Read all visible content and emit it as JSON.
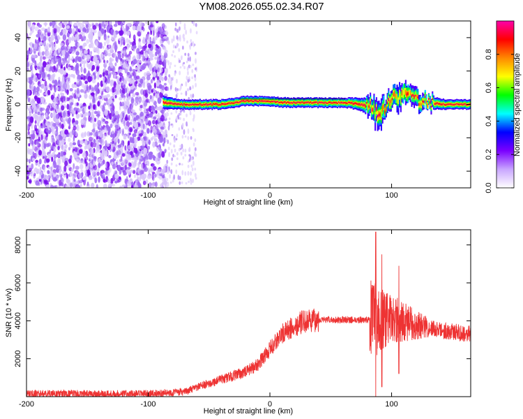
{
  "title": "YM08.2026.055.02.34.R07",
  "colors": {
    "snr_line": "#ee3333",
    "frame": "#000000",
    "colormap": [
      "#ffffff",
      "#c9a6ff",
      "#7b00ff",
      "#0000ff",
      "#00ffff",
      "#00ff00",
      "#ffff00",
      "#ff8800",
      "#ff0000",
      "#ff00aa"
    ]
  },
  "chart_data": [
    {
      "type": "heatmap",
      "name": "spectrogram",
      "xlabel": "Height of straight line (km)",
      "ylabel": "Frequency (Hz)",
      "xlim": [
        -200,
        165
      ],
      "ylim": [
        -50,
        50
      ],
      "xticks": [
        -200,
        -100,
        0,
        100
      ],
      "yticks": [
        -40,
        -20,
        0,
        20,
        40
      ],
      "colorbar": {
        "label": "Normalized spectral amplitude",
        "range": [
          0,
          1
        ],
        "ticks": [
          0.0,
          0.2,
          0.4,
          0.6,
          0.8
        ]
      },
      "noise_region": {
        "x_from": -200,
        "x_dense_to": -85,
        "x_sparse_to": -60
      },
      "ridge": [
        {
          "x": -88,
          "freq": 1,
          "width": 4
        },
        {
          "x": -75,
          "freq": 0,
          "width": 3
        },
        {
          "x": -60,
          "freq": 0,
          "width": 3
        },
        {
          "x": -40,
          "freq": 0,
          "width": 3
        },
        {
          "x": -20,
          "freq": 2,
          "width": 3
        },
        {
          "x": -5,
          "freq": 2,
          "width": 3
        },
        {
          "x": 15,
          "freq": 1,
          "width": 3
        },
        {
          "x": 40,
          "freq": 1,
          "width": 3
        },
        {
          "x": 62,
          "freq": 1,
          "width": 3
        },
        {
          "x": 75,
          "freq": 0,
          "width": 4
        },
        {
          "x": 82,
          "freq": -2,
          "width": 6
        },
        {
          "x": 88,
          "freq": -5,
          "width": 8
        },
        {
          "x": 95,
          "freq": -1,
          "width": 6
        },
        {
          "x": 102,
          "freq": 4,
          "width": 6
        },
        {
          "x": 110,
          "freq": 6,
          "width": 6
        },
        {
          "x": 120,
          "freq": 3,
          "width": 5
        },
        {
          "x": 130,
          "freq": 1,
          "width": 4
        },
        {
          "x": 145,
          "freq": 0,
          "width": 3
        },
        {
          "x": 165,
          "freq": 0,
          "width": 3
        }
      ]
    },
    {
      "type": "line",
      "name": "snr",
      "xlabel": "Height of straight line (km)",
      "ylabel": "SNR (10 * v/v)",
      "xlim": [
        -200,
        165
      ],
      "ylim": [
        0,
        8800
      ],
      "xticks": [
        -200,
        -100,
        0,
        100
      ],
      "yticks": [
        2000,
        4000,
        6000,
        8000
      ],
      "trend": [
        {
          "x": -200,
          "y": 150
        },
        {
          "x": -100,
          "y": 150
        },
        {
          "x": -70,
          "y": 250
        },
        {
          "x": -55,
          "y": 600
        },
        {
          "x": -40,
          "y": 900
        },
        {
          "x": -20,
          "y": 1300
        },
        {
          "x": -10,
          "y": 1700
        },
        {
          "x": 0,
          "y": 2500
        },
        {
          "x": 10,
          "y": 3300
        },
        {
          "x": 25,
          "y": 3900
        },
        {
          "x": 40,
          "y": 4050
        },
        {
          "x": 82,
          "y": 4050
        },
        {
          "x": 100,
          "y": 4100
        },
        {
          "x": 120,
          "y": 3800
        },
        {
          "x": 140,
          "y": 3500
        },
        {
          "x": 165,
          "y": 3300
        }
      ],
      "spikes": [
        {
          "x": 87,
          "y_max": 8700,
          "y_min": 0
        },
        {
          "x": 92,
          "y_max": 7500,
          "y_min": 500
        },
        {
          "x": 106,
          "y_max": 6900,
          "y_min": 1200
        }
      ]
    }
  ]
}
